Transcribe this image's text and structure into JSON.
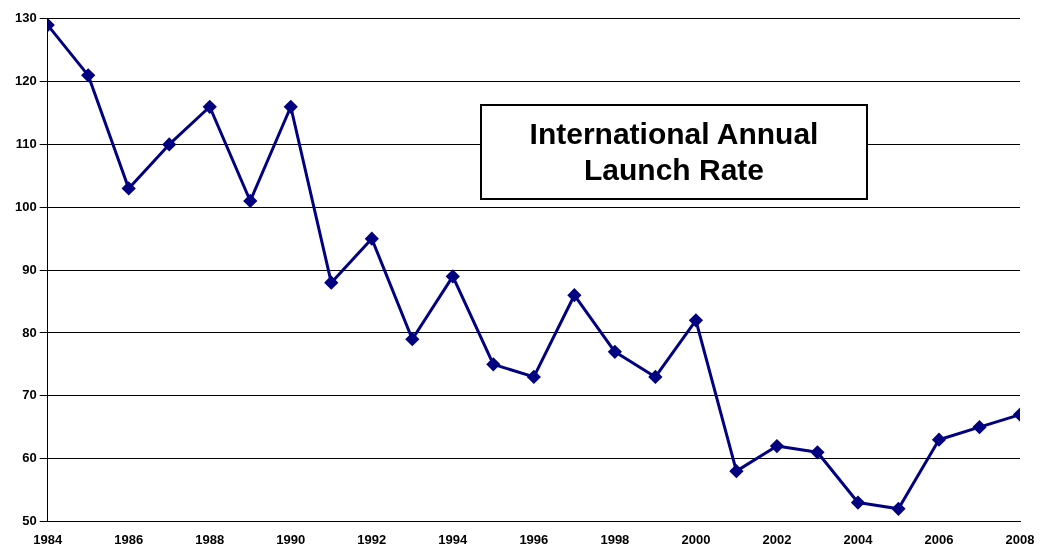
{
  "chart_data": {
    "type": "line",
    "title": "International Annual Launch Rate",
    "x": [
      1984,
      1985,
      1986,
      1987,
      1988,
      1989,
      1990,
      1991,
      1992,
      1993,
      1994,
      1995,
      1996,
      1997,
      1998,
      1999,
      2000,
      2001,
      2002,
      2003,
      2004,
      2005,
      2006,
      2007,
      2008
    ],
    "series": [
      {
        "color": "#000080",
        "values": [
          129,
          121,
          103,
          110,
          116,
          101,
          116,
          88,
          95,
          79,
          89,
          75,
          73,
          86,
          77,
          73,
          82,
          58,
          62,
          61,
          53,
          52,
          63,
          65,
          67
        ]
      }
    ],
    "xlim": [
      1984,
      2008
    ],
    "xticks": [
      1984,
      1986,
      1988,
      1990,
      1992,
      1994,
      1996,
      1998,
      2000,
      2002,
      2004,
      2006,
      2008
    ],
    "ylim": [
      50,
      130
    ],
    "yticks": [
      50,
      60,
      70,
      80,
      90,
      100,
      110,
      120,
      130
    ],
    "grid": "y",
    "legend": false,
    "marker": "diamond",
    "line_style": "solid"
  }
}
